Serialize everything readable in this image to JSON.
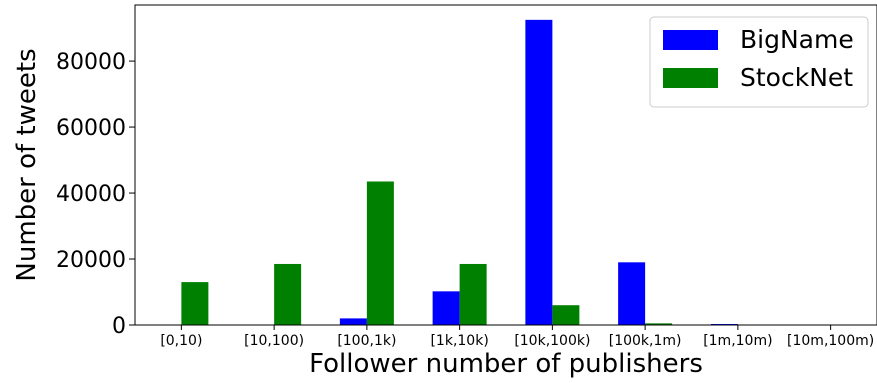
{
  "chart_data": {
    "type": "bar",
    "title": "",
    "xlabel": "Follower number of publishers",
    "ylabel": "Number of tweets",
    "categories": [
      "[0,10)",
      "[10,100)",
      "[100,1k)",
      "[1k,10k)",
      "[10k,100k)",
      "[100k,1m)",
      "[1m,10m)",
      "[10m,100m)"
    ],
    "series": [
      {
        "name": "BigName",
        "color": "#0000ff",
        "values": [
          0,
          0,
          2000,
          10200,
          92500,
          19000,
          300,
          0
        ]
      },
      {
        "name": "StockNet",
        "color": "#008000",
        "values": [
          13000,
          18500,
          43500,
          18500,
          6000,
          500,
          0,
          0
        ]
      }
    ],
    "ylim": [
      0,
      97000
    ],
    "yticks": [
      0,
      20000,
      40000,
      60000,
      80000
    ],
    "grid": false,
    "legend_position": "top-right"
  }
}
